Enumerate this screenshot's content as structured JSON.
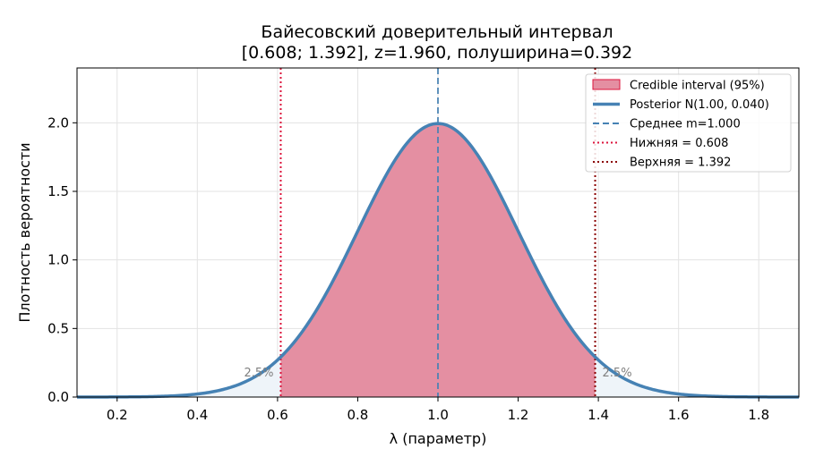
{
  "chart_data": {
    "type": "area",
    "title_line1": "Байесовский доверительный интервал",
    "title_line2": "[0.608; 1.392],  z=1.960, полуширина=0.392",
    "xlabel": "λ (параметр)",
    "ylabel": "Плотность вероятности",
    "xlim": [
      0.1,
      1.9
    ],
    "ylim": [
      0,
      2.4
    ],
    "xticks": [
      0.2,
      0.4,
      0.6,
      0.8,
      1.0,
      1.2,
      1.4,
      1.6,
      1.8
    ],
    "xtick_labels": [
      "0.2",
      "0.4",
      "0.6",
      "0.8",
      "1.0",
      "1.2",
      "1.4",
      "1.6",
      "1.8"
    ],
    "yticks": [
      0.0,
      0.5,
      1.0,
      1.5,
      2.0
    ],
    "ytick_labels": [
      "0.0",
      "0.5",
      "1.0",
      "1.5",
      "2.0"
    ],
    "grid": true,
    "legend_position": "top-right",
    "posterior": {
      "distribution": "normal",
      "mean": 1.0,
      "variance": 0.04,
      "sd": 0.2
    },
    "interval": {
      "lower": 0.608,
      "upper": 1.392,
      "mean": 1.0
    },
    "tail_labels": {
      "left": "2.5%",
      "right": "2.5%"
    },
    "legend": [
      {
        "key": "fill",
        "label": "Credible interval (95%)"
      },
      {
        "key": "curve",
        "label": "Posterior N(1.00, 0.040)"
      },
      {
        "key": "mean",
        "label": "Среднее m=1.000"
      },
      {
        "key": "lower",
        "label": "Нижняя = 0.608"
      },
      {
        "key": "upper",
        "label": "Верхняя = 1.392"
      }
    ],
    "colors": {
      "curve": "#4682b4",
      "interval_fill": "#e48fa2",
      "interval_edge": "#dc143c",
      "tail_fill": "#eef4f9",
      "mean_line": "#4682b4",
      "lower_line": "#dc143c",
      "upper_line": "#8b0000",
      "grid": "#e3e3e3"
    }
  }
}
